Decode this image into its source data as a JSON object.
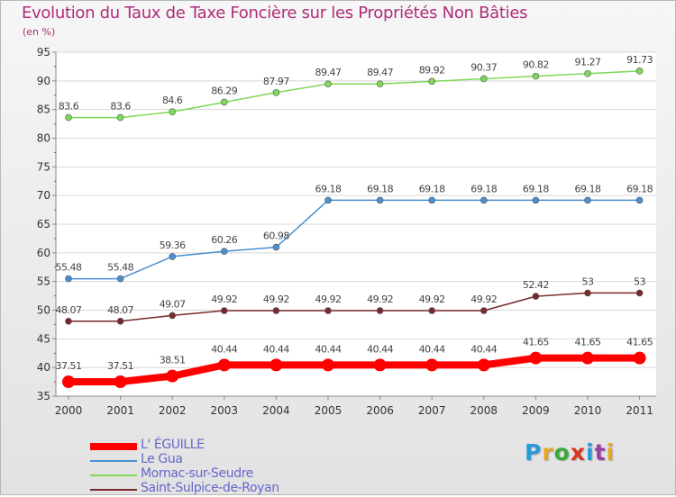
{
  "header": {
    "title": "Evolution du Taux de Taxe Foncière sur les Propriétés Non Bâties",
    "unit": "(en %)"
  },
  "logo": {
    "text": "Proxiti",
    "colors": [
      "#2a9ad6",
      "#e8a81e",
      "#3aa83a",
      "#d8361e",
      "#2a9ad6",
      "#9a3ea8",
      "#e8a81e"
    ]
  },
  "chart_data": {
    "type": "line",
    "title": "Evolution du Taux de Taxe Foncière sur les Propriétés Non Bâties",
    "ylabel": "(en %)",
    "xlabel": "",
    "x": [
      "2000",
      "2001",
      "2002",
      "2003",
      "2004",
      "2005",
      "2006",
      "2007",
      "2008",
      "2009",
      "2010",
      "2011"
    ],
    "ylim": [
      35,
      95
    ],
    "yticks": [
      "35",
      "40",
      "45",
      "50",
      "55",
      "60",
      "65",
      "70",
      "75",
      "80",
      "85",
      "90",
      "95"
    ],
    "grid": "horizontal",
    "legend": "bottom-left",
    "series": [
      {
        "name": "L' ÉGUILLE",
        "color": "#ff0000",
        "values": [
          37.51,
          37.51,
          38.51,
          40.44,
          40.44,
          40.44,
          40.44,
          40.44,
          40.44,
          41.65,
          41.65,
          41.65
        ],
        "labels": [
          "37.51",
          "37.51",
          "38.51",
          "40.44",
          "40.44",
          "40.44",
          "40.44",
          "40.44",
          "40.44",
          "41.65",
          "41.65",
          "41.65"
        ]
      },
      {
        "name": "Le Gua",
        "color": "#4a8fd0",
        "values": [
          55.48,
          55.48,
          59.36,
          60.26,
          60.98,
          69.18,
          69.18,
          69.18,
          69.18,
          69.18,
          69.18,
          69.18
        ],
        "labels": [
          "55.48",
          "55.48",
          "59.36",
          "60.26",
          "60.98",
          "69.18",
          "69.18",
          "69.18",
          "69.18",
          "69.18",
          "69.18",
          "69.18"
        ]
      },
      {
        "name": "Mornac-sur-Seudre",
        "color": "#7ed957",
        "values": [
          83.6,
          83.6,
          84.6,
          86.29,
          87.97,
          89.47,
          89.47,
          89.92,
          90.37,
          90.82,
          91.27,
          91.73
        ],
        "labels": [
          "83.6",
          "83.6",
          "84.6",
          "86.29",
          "87.97",
          "89.47",
          "89.47",
          "89.92",
          "90.37",
          "90.82",
          "91.27",
          "91.73"
        ]
      },
      {
        "name": "Saint-Sulpice-de-Royan",
        "color": "#7a2a2a",
        "values": [
          48.07,
          48.07,
          49.07,
          49.92,
          49.92,
          49.92,
          49.92,
          49.92,
          49.92,
          52.42,
          53,
          53
        ],
        "labels": [
          "48.07",
          "48.07",
          "49.07",
          "49.92",
          "49.92",
          "49.92",
          "49.92",
          "49.92",
          "49.92",
          "52.42",
          "53",
          "53"
        ]
      }
    ]
  }
}
